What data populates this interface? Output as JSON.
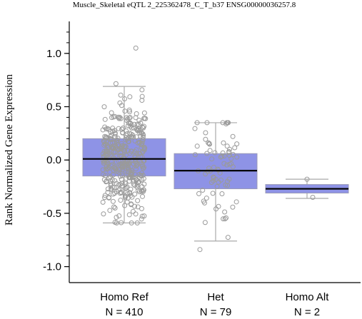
{
  "chart_data": {
    "type": "box",
    "title": "Muscle_Skeletal eQTL 2_225362478_C_T_b37 ENSG00000036257.8",
    "ylabel": "Rank Normalized Gene Expression",
    "xlabel": "",
    "ylim": [
      -1.15,
      1.3
    ],
    "yticks": [
      "1.0",
      "0.5",
      "0.0",
      "-0.5",
      "-1.0"
    ],
    "ytick_values": [
      1.0,
      0.5,
      0.0,
      -0.5,
      -1.0
    ],
    "grid": false,
    "colors": {
      "box_fill": "#8e93e6",
      "box_stroke": "#9a9ab8",
      "median": "#000000",
      "whisker": "#aaaaaa",
      "point_stroke": "#9a9a9a"
    },
    "categories": [
      {
        "name": "Homo Ref",
        "n_label": "N = 410",
        "q1": -0.15,
        "median": 0.01,
        "q3": 0.2,
        "whisker_low": -0.59,
        "whisker_high": 0.69,
        "n": 410,
        "point_range": [
          -0.59,
          1.05
        ]
      },
      {
        "name": "Het",
        "n_label": "N = 79",
        "q1": -0.27,
        "median": -0.1,
        "q3": 0.06,
        "whisker_low": -0.76,
        "whisker_high": 0.35,
        "n": 79,
        "point_range": [
          -0.84,
          0.35
        ]
      },
      {
        "name": "Homo Alt",
        "n_label": "N = 2",
        "q1": -0.31,
        "median": -0.27,
        "q3": -0.23,
        "whisker_low": -0.36,
        "whisker_high": -0.18,
        "n": 2,
        "point_values": [
          -0.18,
          -0.35
        ]
      }
    ]
  }
}
